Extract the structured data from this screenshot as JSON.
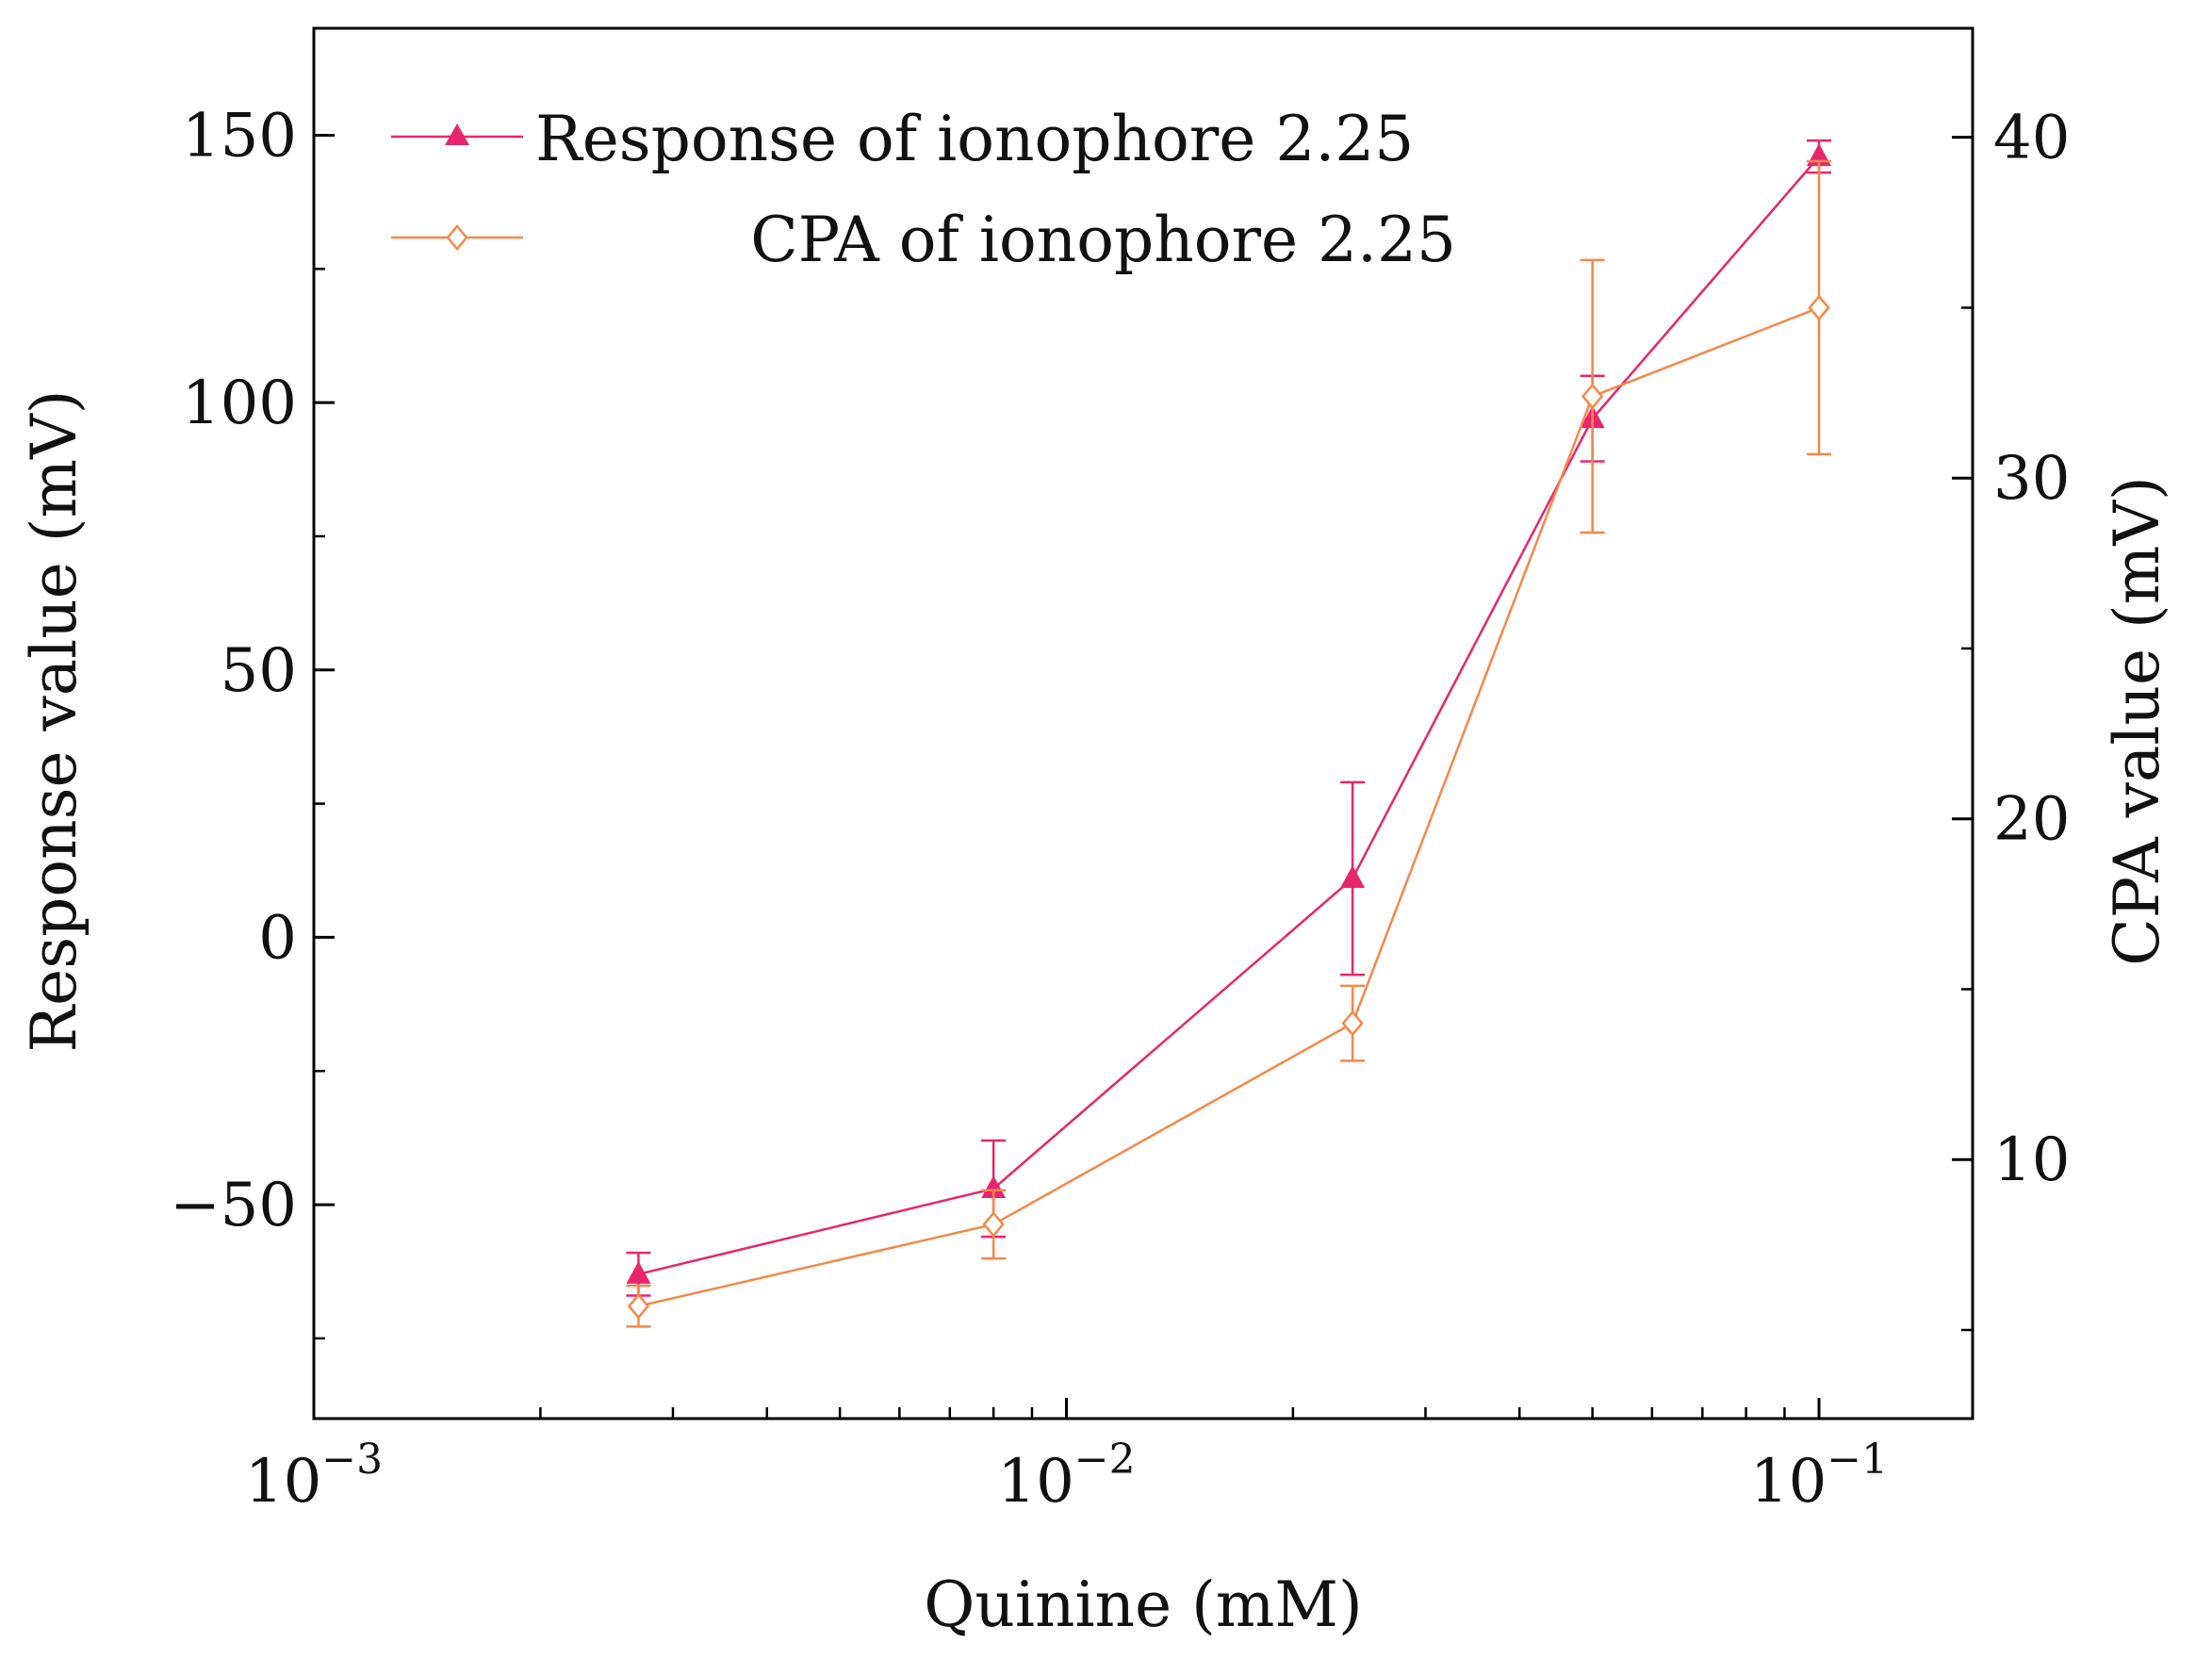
{
  "chart_data": {
    "type": "line",
    "xlabel": "Quinine (mM)",
    "ylabel_left": "Response value (mV)",
    "ylabel_right": "CPA value (mV)",
    "x_scale": "log",
    "xlim": [
      0.001,
      0.16
    ],
    "ylim_left": [
      -90,
      170
    ],
    "ylim_right": [
      2.4,
      43.2
    ],
    "x_ticks": [
      {
        "value": 0.001,
        "base": "10",
        "exp": "−3"
      },
      {
        "value": 0.01,
        "base": "10",
        "exp": "−2"
      },
      {
        "value": 0.1,
        "base": "10",
        "exp": "−1"
      }
    ],
    "y_left_ticks": [
      {
        "value": 150,
        "label": "150"
      },
      {
        "value": 100,
        "label": "100"
      },
      {
        "value": 50,
        "label": "50"
      },
      {
        "value": 0,
        "label": "0"
      },
      {
        "value": -50,
        "label": "−50"
      }
    ],
    "y_right_ticks": [
      {
        "value": 40,
        "label": "40"
      },
      {
        "value": 30,
        "label": "30"
      },
      {
        "value": 20,
        "label": "20"
      },
      {
        "value": 10,
        "label": "10"
      }
    ],
    "series": [
      {
        "name": "Response of ionophore 2.25",
        "axis": "left",
        "color": "#e8266e",
        "marker": "triangle",
        "x": [
          0.0027,
          0.008,
          0.024,
          0.05,
          0.1
        ],
        "y": [
          -63,
          -47,
          11,
          97,
          146
        ],
        "err": [
          4,
          9,
          18,
          8,
          3
        ]
      },
      {
        "name": "CPA of ionophore 2.25",
        "axis": "right",
        "color": "#f5884a",
        "marker": "diamond",
        "x": [
          0.0027,
          0.008,
          0.024,
          0.05,
          0.1
        ],
        "y": [
          5.7,
          8.1,
          14.0,
          32.4,
          35.0
        ],
        "err": [
          0.6,
          1.0,
          1.1,
          4.0,
          4.3
        ]
      }
    ]
  }
}
